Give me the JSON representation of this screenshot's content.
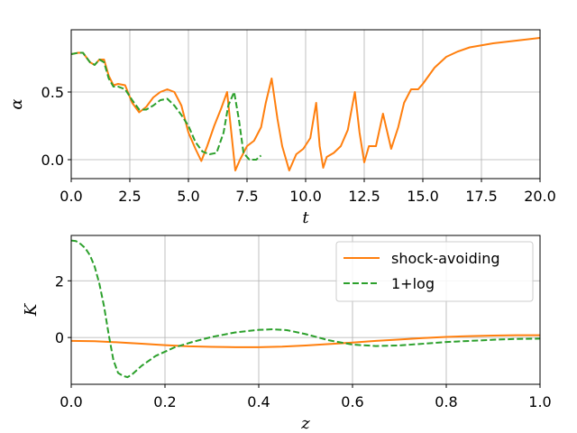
{
  "chart_data": [
    {
      "type": "line",
      "xlabel": "t",
      "ylabel": "α",
      "xlim": [
        0,
        20
      ],
      "ylim": [
        -0.14,
        0.96
      ],
      "xticks": [
        "0.0",
        "2.5",
        "5.0",
        "7.5",
        "10.0",
        "12.5",
        "15.0",
        "17.5",
        "20.0"
      ],
      "yticks": [
        "0.0",
        "0.5"
      ],
      "grid": true,
      "series": [
        {
          "color": "#ff7f0e",
          "style": "solid",
          "x": [
            0,
            0.3,
            0.5,
            0.8,
            1.0,
            1.2,
            1.4,
            1.6,
            1.8,
            2.0,
            2.3,
            2.6,
            2.9,
            3.2,
            3.5,
            3.8,
            4.1,
            4.4,
            4.7,
            5.0,
            5.3,
            5.55,
            5.8,
            6.1,
            6.4,
            6.65,
            6.8,
            7.0,
            7.2,
            7.5,
            7.8,
            8.1,
            8.3,
            8.55,
            8.8,
            9.0,
            9.3,
            9.6,
            9.9,
            10.2,
            10.45,
            10.6,
            10.75,
            10.9,
            11.2,
            11.5,
            11.8,
            12.1,
            12.3,
            12.5,
            12.7,
            13.0,
            13.3,
            13.65,
            13.95,
            14.2,
            14.5,
            14.8,
            15.0,
            15.5,
            16.0,
            16.5,
            17.0,
            18.0,
            19.0,
            20.0
          ],
          "y": [
            0.78,
            0.79,
            0.79,
            0.72,
            0.7,
            0.74,
            0.74,
            0.62,
            0.55,
            0.56,
            0.55,
            0.42,
            0.35,
            0.39,
            0.46,
            0.5,
            0.52,
            0.5,
            0.4,
            0.2,
            0.08,
            -0.01,
            0.1,
            0.25,
            0.38,
            0.5,
            0.25,
            -0.08,
            0.0,
            0.1,
            0.14,
            0.24,
            0.42,
            0.6,
            0.3,
            0.1,
            -0.08,
            0.04,
            0.08,
            0.16,
            0.42,
            0.1,
            -0.06,
            0.02,
            0.05,
            0.1,
            0.22,
            0.5,
            0.2,
            -0.02,
            0.1,
            0.1,
            0.34,
            0.08,
            0.24,
            0.42,
            0.52,
            0.52,
            0.56,
            0.68,
            0.76,
            0.8,
            0.83,
            0.86,
            0.88,
            0.9
          ]
        },
        {
          "color": "#2ca02c",
          "style": "dashed",
          "x": [
            0,
            0.3,
            0.5,
            0.8,
            1.0,
            1.2,
            1.4,
            1.6,
            1.8,
            2.0,
            2.3,
            2.6,
            2.9,
            3.2,
            3.5,
            3.8,
            4.1,
            4.4,
            4.7,
            5.0,
            5.3,
            5.6,
            5.9,
            6.2,
            6.5,
            6.7,
            6.95,
            7.15,
            7.35,
            7.6,
            7.9,
            8.0,
            8.1
          ],
          "y": [
            0.78,
            0.79,
            0.79,
            0.72,
            0.7,
            0.74,
            0.72,
            0.6,
            0.54,
            0.54,
            0.52,
            0.44,
            0.37,
            0.37,
            0.4,
            0.44,
            0.45,
            0.4,
            0.33,
            0.25,
            0.13,
            0.06,
            0.04,
            0.05,
            0.2,
            0.4,
            0.5,
            0.3,
            0.05,
            0.0,
            0.0,
            0.02,
            0.03
          ]
        }
      ]
    },
    {
      "type": "line",
      "xlabel": "z",
      "ylabel": "K",
      "xlim": [
        0,
        1
      ],
      "ylim": [
        -1.65,
        3.6
      ],
      "xticks": [
        "0.0",
        "0.2",
        "0.4",
        "0.6",
        "0.8",
        "1.0"
      ],
      "yticks": [
        "0",
        "2"
      ],
      "grid": true,
      "legend_position": "top-right",
      "series": [
        {
          "name": "shock-avoiding",
          "color": "#ff7f0e",
          "style": "solid",
          "x": [
            0,
            0.05,
            0.1,
            0.15,
            0.2,
            0.25,
            0.3,
            0.35,
            0.4,
            0.45,
            0.5,
            0.55,
            0.6,
            0.65,
            0.7,
            0.75,
            0.8,
            0.85,
            0.9,
            0.95,
            1.0
          ],
          "y": [
            -0.12,
            -0.13,
            -0.17,
            -0.22,
            -0.27,
            -0.31,
            -0.33,
            -0.34,
            -0.34,
            -0.32,
            -0.28,
            -0.23,
            -0.18,
            -0.12,
            -0.07,
            -0.02,
            0.02,
            0.05,
            0.07,
            0.08,
            0.08
          ]
        },
        {
          "name": "1+log",
          "color": "#2ca02c",
          "style": "dashed",
          "x": [
            0,
            0.01,
            0.02,
            0.03,
            0.04,
            0.05,
            0.06,
            0.07,
            0.08,
            0.09,
            0.1,
            0.11,
            0.12,
            0.13,
            0.15,
            0.18,
            0.22,
            0.26,
            0.3,
            0.35,
            0.4,
            0.43,
            0.46,
            0.5,
            0.55,
            0.6,
            0.65,
            0.7,
            0.75,
            0.8,
            0.85,
            0.9,
            0.95,
            1.0
          ],
          "y": [
            3.42,
            3.4,
            3.3,
            3.15,
            2.9,
            2.5,
            1.9,
            1.1,
            0.1,
            -0.8,
            -1.25,
            -1.35,
            -1.4,
            -1.3,
            -1.0,
            -0.65,
            -0.35,
            -0.15,
            0.02,
            0.18,
            0.27,
            0.29,
            0.26,
            0.12,
            -0.1,
            -0.25,
            -0.3,
            -0.28,
            -0.22,
            -0.16,
            -0.12,
            -0.08,
            -0.05,
            -0.04
          ]
        }
      ]
    }
  ]
}
